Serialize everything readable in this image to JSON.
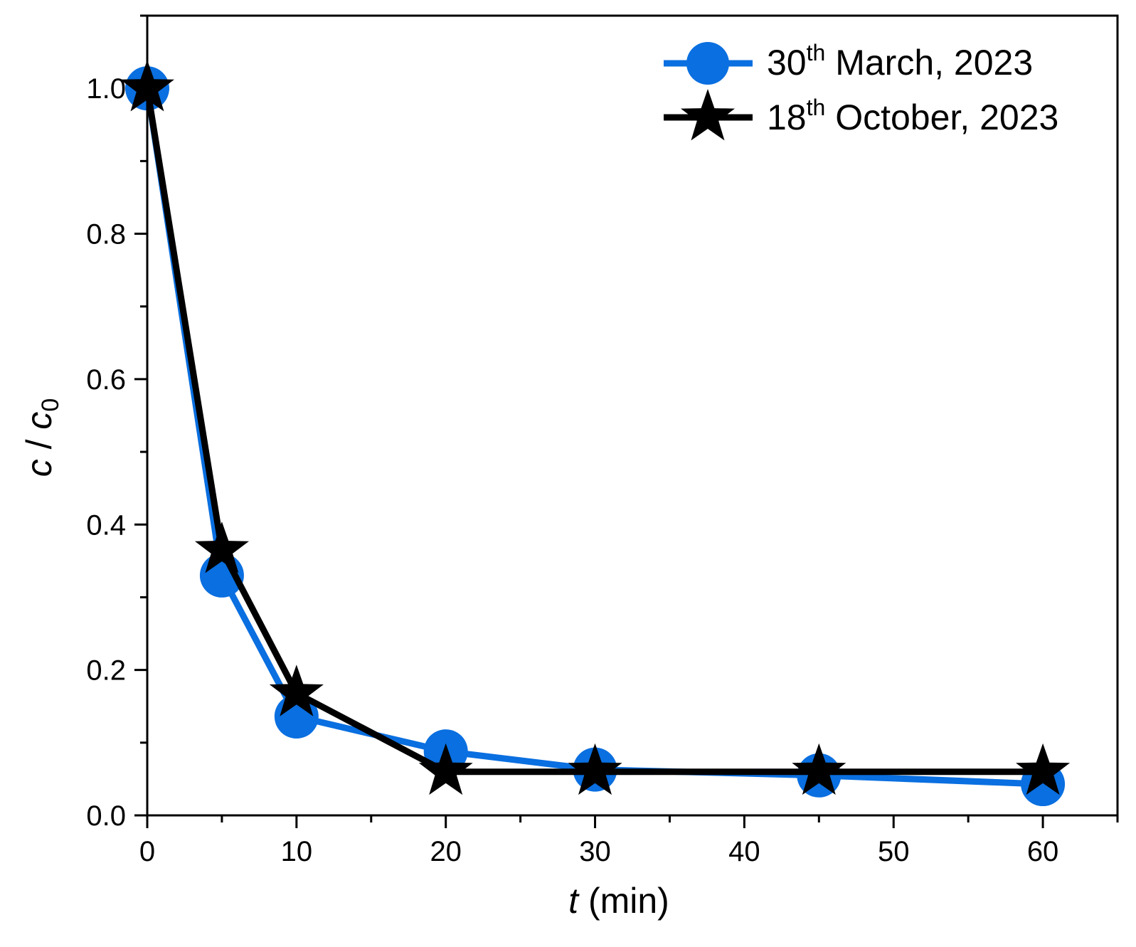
{
  "chart_data": {
    "type": "line",
    "xlabel": {
      "italic": "t",
      "rest": " (min)"
    },
    "ylabel": {
      "italic1": "c",
      "sep": " / ",
      "italic2": "c",
      "sub": "0"
    },
    "xlim": [
      0,
      65
    ],
    "ylim": [
      0,
      1.1
    ],
    "xticks": [
      0,
      10,
      20,
      30,
      40,
      50,
      60
    ],
    "xminor_step": 5,
    "yticks": [
      0.0,
      0.2,
      0.4,
      0.6,
      0.8,
      1.0
    ],
    "ytick_labels": [
      "0.0",
      "0.2",
      "0.4",
      "0.6",
      "0.8",
      "1.0"
    ],
    "yminor_step": 0.1,
    "grid": false,
    "legend_position": "top-right",
    "series": [
      {
        "name": {
          "pre": "30",
          "sup": "th",
          "post": " March, 2023"
        },
        "marker": "circle",
        "color": "#0a6fe0",
        "x": [
          0,
          5,
          10,
          20,
          30,
          45,
          60
        ],
        "y": [
          1.0,
          0.33,
          0.136,
          0.088,
          0.063,
          0.055,
          0.043
        ]
      },
      {
        "name": {
          "pre": "18",
          "sup": "th",
          "post": " October, 2023"
        },
        "marker": "star",
        "color": "#000000",
        "x": [
          0,
          5,
          10,
          20,
          30,
          45,
          60
        ],
        "y": [
          1.0,
          0.365,
          0.168,
          0.06,
          0.06,
          0.06,
          0.06
        ]
      }
    ]
  }
}
